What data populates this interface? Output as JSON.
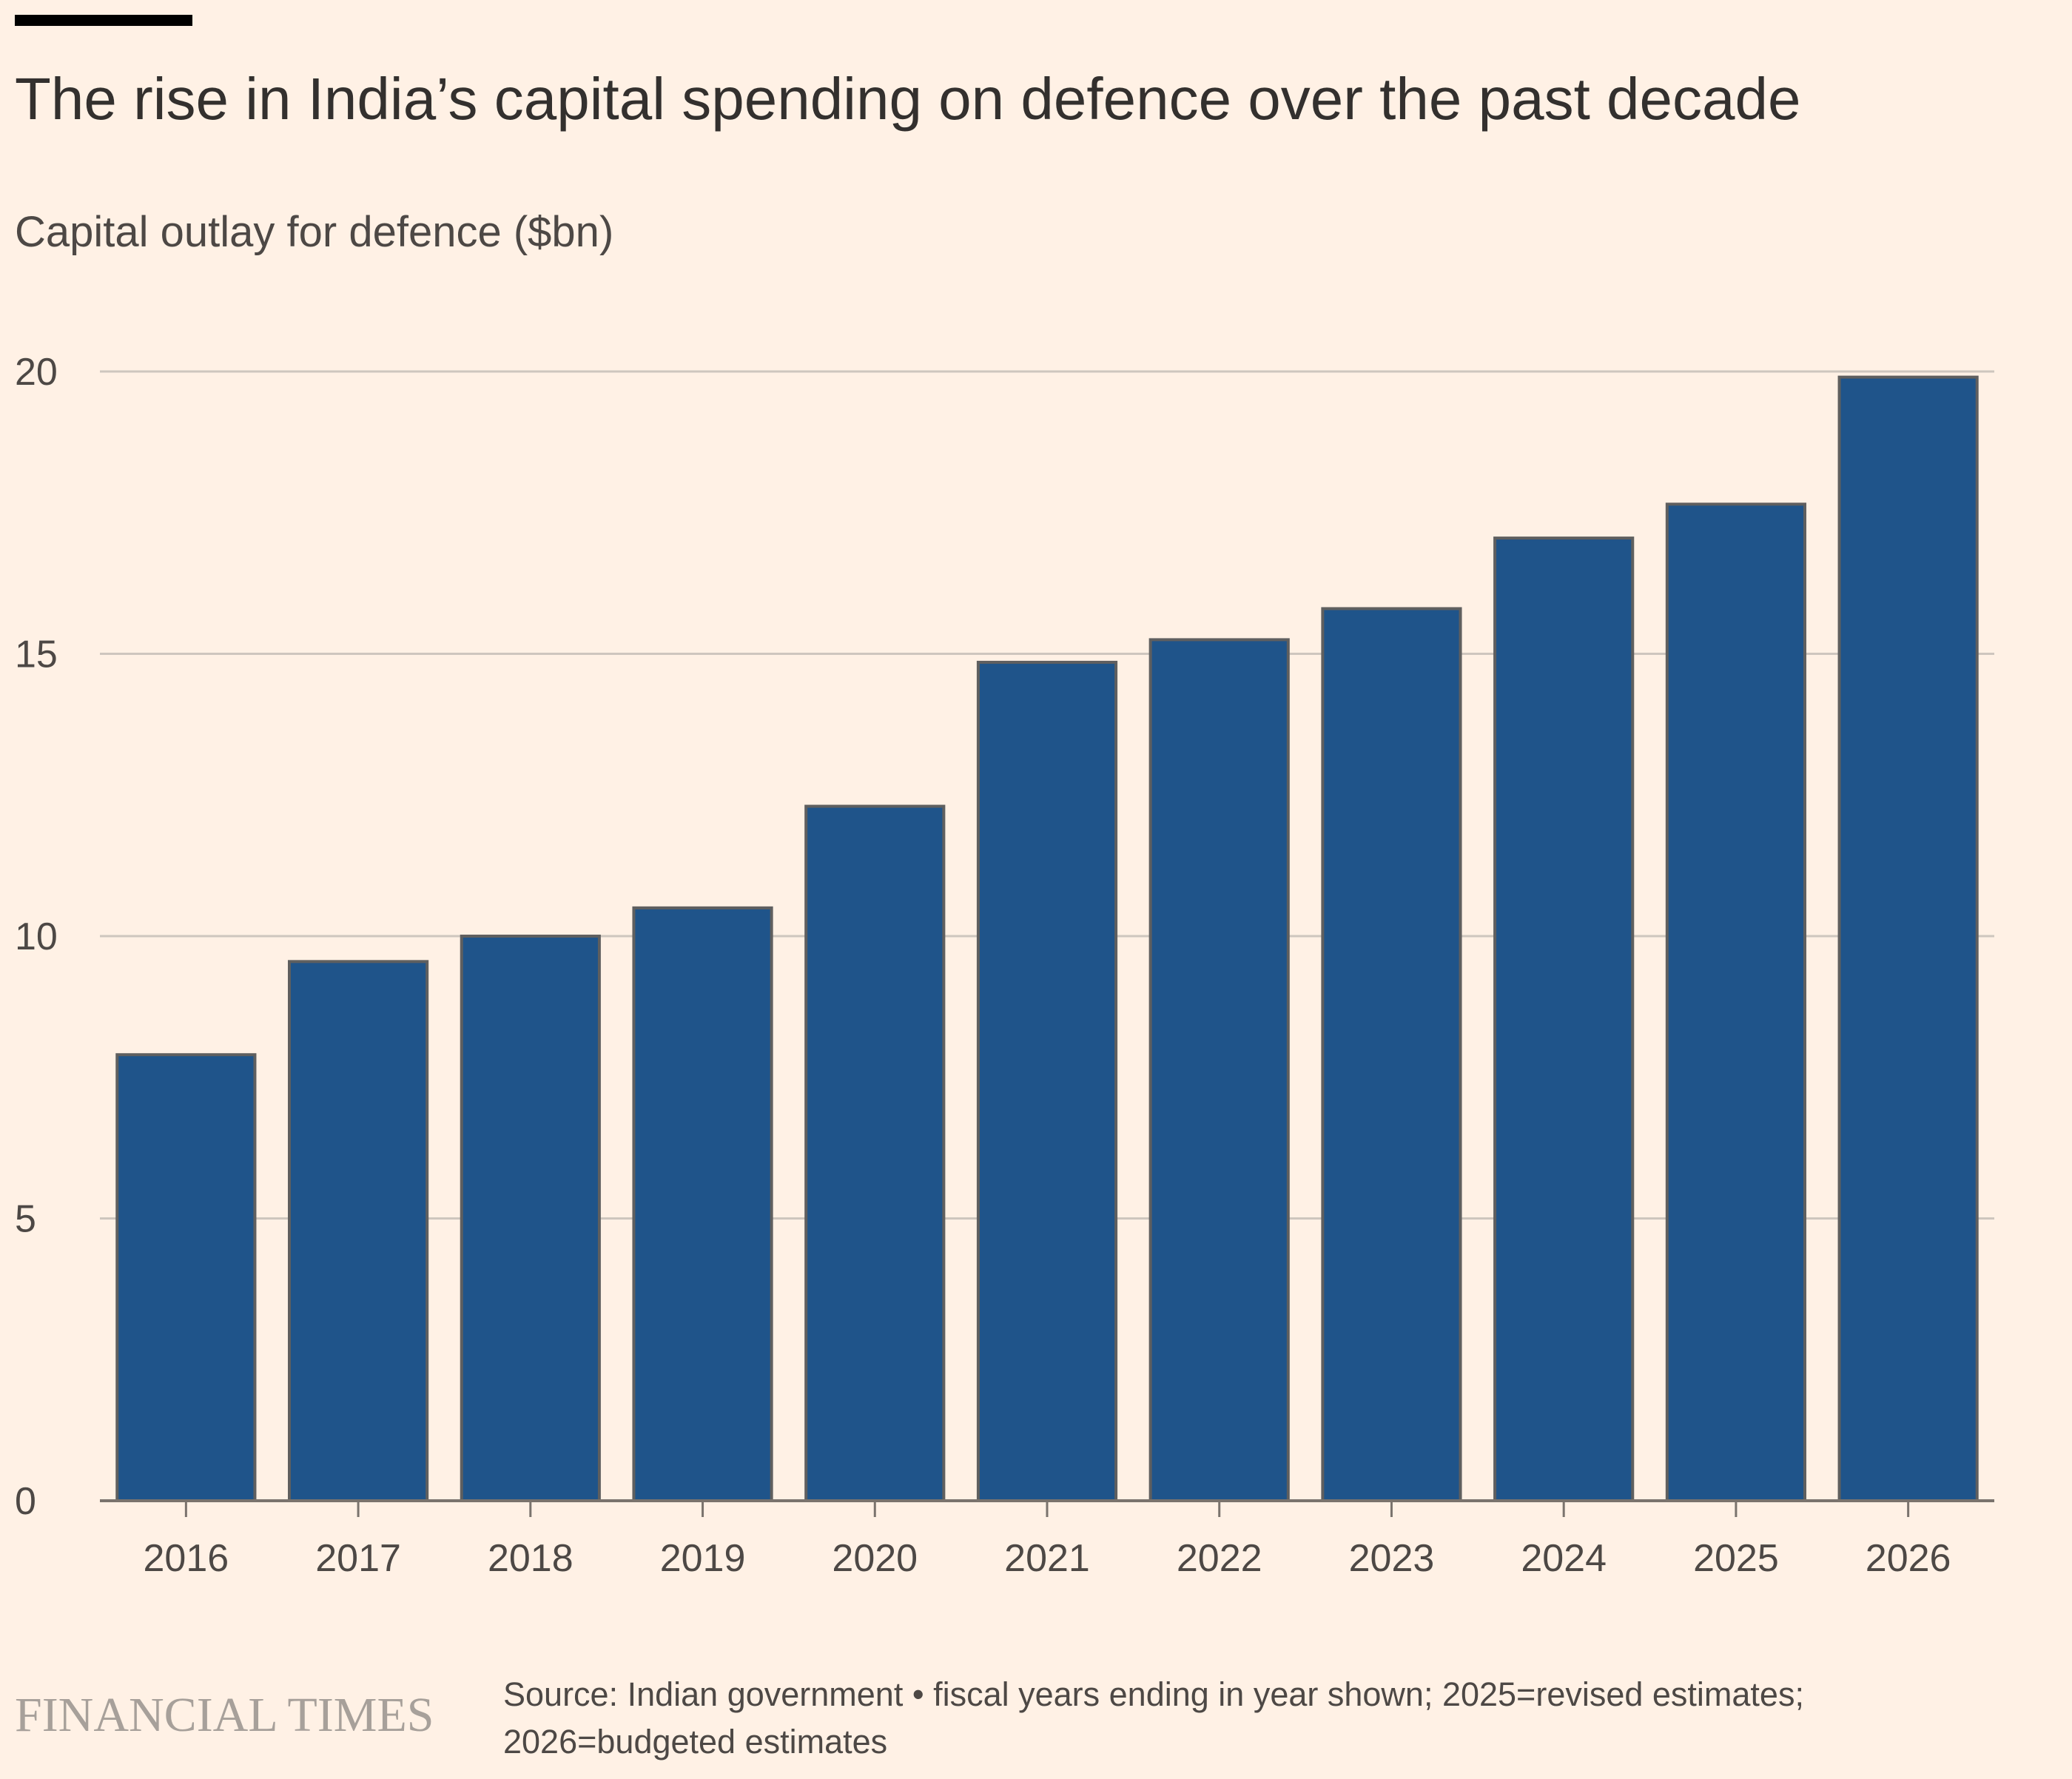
{
  "header": {
    "title": "The rise in India’s capital spending on defence over the past decade",
    "subtitle": "Capital outlay for defence ($bn)"
  },
  "chart_data": {
    "type": "bar",
    "title": "The rise in India’s capital spending on defence over the past decade",
    "ylabel": "Capital outlay for defence ($bn)",
    "xlabel": "",
    "categories": [
      "2016",
      "2017",
      "2018",
      "2019",
      "2020",
      "2021",
      "2022",
      "2023",
      "2024",
      "2025",
      "2026"
    ],
    "values": [
      7.9,
      9.55,
      10.0,
      10.5,
      12.3,
      14.85,
      15.25,
      15.8,
      17.05,
      17.65,
      19.9
    ],
    "ylim": [
      0,
      20
    ],
    "yticks": [
      0,
      5,
      10,
      15,
      20
    ],
    "grid": true,
    "legend": "none",
    "colors": {
      "bar_fill": "#1F548A",
      "bar_stroke": "#5F5F5F",
      "grid": "#CEC6BE",
      "axis": "#7A736D",
      "background": "#FFF1E5"
    }
  },
  "footer": {
    "logo_text": "FINANCIAL TIMES",
    "source_text": "Source: Indian government • fiscal years ending in year shown; 2025=revised estimates; 2026=budgeted estimates"
  }
}
